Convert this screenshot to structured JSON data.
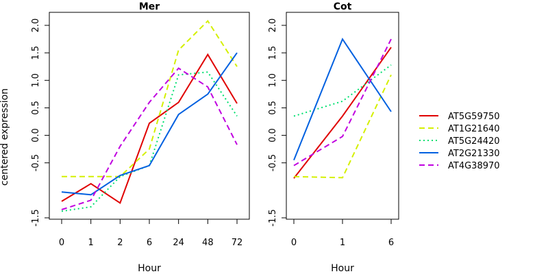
{
  "chart_data": {
    "type": "line",
    "ylabel": "centered expression",
    "colors": {
      "AT5G59750": "#e00000",
      "AT1G21640": "#d4f000",
      "AT5G24420": "#00e070",
      "AT2G21330": "#0060e0",
      "AT4G38970": "#c000e0"
    },
    "line_styles": {
      "AT5G59750": "solid",
      "AT1G21640": "dashed",
      "AT5G24420": "dotted",
      "AT2G21330": "solid",
      "AT4G38970": "dashed"
    },
    "legend_position": "right",
    "panels": [
      {
        "title": "Mer",
        "xlabel": "Hour",
        "categories": [
          "0",
          "1",
          "2",
          "6",
          "24",
          "48",
          "72"
        ],
        "ylim": [
          -1.5,
          2.2
        ],
        "yticks": [
          "-1.5",
          "-0.5",
          "0.0",
          "0.5",
          "1.0",
          "1.5",
          "2.0"
        ],
        "series": [
          {
            "name": "AT5G59750",
            "values": [
              -1.2,
              -0.88,
              -1.23,
              0.22,
              0.6,
              1.47,
              0.58
            ]
          },
          {
            "name": "AT1G21640",
            "values": [
              -0.75,
              -0.75,
              -0.75,
              -0.25,
              1.55,
              2.08,
              1.25
            ]
          },
          {
            "name": "AT5G24420",
            "values": [
              -1.38,
              -1.3,
              -0.75,
              -0.55,
              1.1,
              1.15,
              0.35
            ]
          },
          {
            "name": "AT2G21330",
            "values": [
              -1.03,
              -1.08,
              -0.73,
              -0.55,
              0.38,
              0.75,
              1.5
            ]
          },
          {
            "name": "AT4G38970",
            "values": [
              -1.35,
              -1.18,
              -0.2,
              0.6,
              1.22,
              0.88,
              -0.17
            ]
          }
        ]
      },
      {
        "title": "Cot",
        "xlabel": "Hour",
        "categories": [
          "0",
          "1",
          "6"
        ],
        "ylim": [
          -1.5,
          2.2
        ],
        "yticks": [
          "-1.5",
          "-0.5",
          "0.0",
          "0.5",
          "1.0",
          "1.5",
          "2.0"
        ],
        "series": [
          {
            "name": "AT5G59750",
            "values": [
              -0.78,
              0.35,
              1.6
            ]
          },
          {
            "name": "AT1G21640",
            "values": [
              -0.75,
              -0.77,
              1.1
            ]
          },
          {
            "name": "AT5G24420",
            "values": [
              0.35,
              0.62,
              1.28
            ]
          },
          {
            "name": "AT2G21330",
            "values": [
              -0.45,
              1.75,
              0.43
            ]
          },
          {
            "name": "AT4G38970",
            "values": [
              -0.55,
              -0.02,
              1.75
            ]
          }
        ]
      }
    ],
    "legend": [
      "AT5G59750",
      "AT1G21640",
      "AT5G24420",
      "AT2G21330",
      "AT4G38970"
    ]
  }
}
